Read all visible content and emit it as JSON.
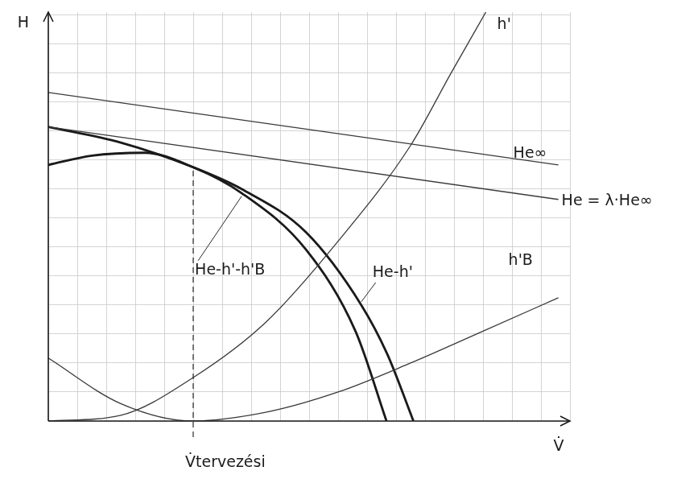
{
  "chart_data": {
    "type": "line",
    "x_label": "V̇",
    "y_label": "H",
    "xlim": [
      0,
      18
    ],
    "ylim": [
      0,
      14.1
    ],
    "xticks": [
      0,
      1,
      2,
      3,
      4,
      5,
      6,
      7,
      8,
      9,
      10,
      11,
      12,
      13,
      14,
      15,
      16,
      17,
      18
    ],
    "yticks": [
      0,
      1,
      2,
      3,
      4,
      5,
      6,
      7,
      8,
      9,
      10,
      11,
      12,
      13,
      14
    ],
    "grid": true,
    "tick_labels": false,
    "series": [
      {
        "name": "He∞",
        "color": "#3a3a3a",
        "line_style": "solid",
        "x": [
          0,
          17.6
        ],
        "values": [
          11.33,
          8.83
        ]
      },
      {
        "name": "He = λ·He∞",
        "color": "#3a3a3a",
        "line_style": "solid",
        "x": [
          0,
          17.6
        ],
        "values": [
          10.14,
          7.64
        ]
      },
      {
        "name": "h'",
        "color": "#3a3a3a",
        "line_style": "solid",
        "x": [
          0,
          2.5,
          5,
          7.5,
          10,
          12.5,
          13.9,
          15.1
        ],
        "values": [
          0,
          0.2,
          1.5,
          3.4,
          6.2,
          9.5,
          12,
          14.1
        ]
      },
      {
        "name": "h'B",
        "color": "#3a3a3a",
        "line_style": "solid",
        "x": [
          0,
          2.5,
          5,
          7.5,
          10,
          12.5,
          15,
          17.6
        ],
        "values": [
          2.17,
          0.6,
          0,
          0.3,
          1,
          2,
          3.1,
          4.25
        ]
      },
      {
        "name": "He-h'",
        "color": "#1a1a1a",
        "line_style": "solid",
        "x": [
          0,
          2.5,
          5,
          6.67,
          8.9,
          10.8,
          11.7,
          12.6
        ],
        "values": [
          10.14,
          9.6,
          8.75,
          8,
          6.5,
          4,
          2.3,
          0
        ]
      },
      {
        "name": "He-h'-h'B",
        "color": "#1a1a1a",
        "line_style": "solid",
        "x": [
          0,
          1.5,
          3.33,
          5,
          6.67,
          8.9,
          10.6,
          11.67
        ],
        "values": [
          8.83,
          9.15,
          9.25,
          8.75,
          7.86,
          5.9,
          3.1,
          0
        ]
      }
    ],
    "annotations": [
      {
        "text": "V̇tervezési",
        "x": 5,
        "y": 8.75,
        "line_style": "dashed"
      }
    ]
  }
}
